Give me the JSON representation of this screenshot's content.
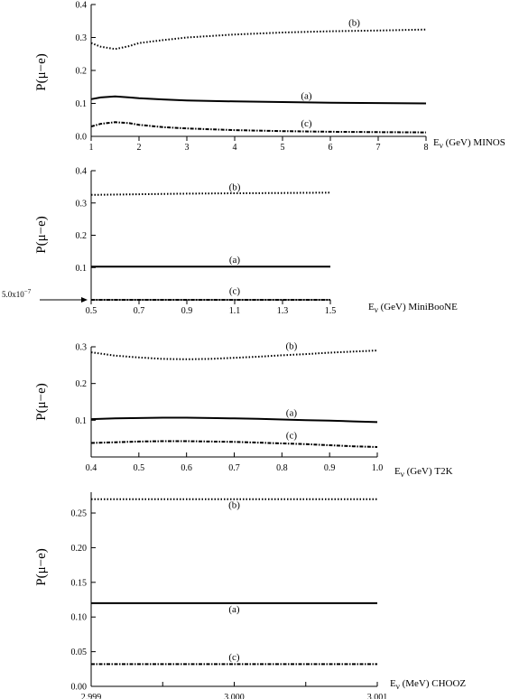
{
  "chart_data": [
    {
      "type": "line",
      "ylabel": "P(μ−e)",
      "xlabel": "Eν (GeV) MINOS",
      "xlim": [
        1,
        8
      ],
      "ylim": [
        0,
        0.4
      ],
      "xticks": [
        1,
        2,
        3,
        4,
        5,
        6,
        7,
        8
      ],
      "xtick_labels": [
        "1",
        "2",
        "3",
        "4",
        "5",
        "6",
        "7",
        "8"
      ],
      "yticks": [
        0,
        0.1,
        0.2,
        0.3,
        0.4
      ],
      "ytick_labels": [
        "0.0",
        "0.1",
        "0.2",
        "0.3",
        "0.4"
      ],
      "series": [
        {
          "name": "(b)",
          "style": "dotted",
          "label_at": [
            6.5,
            0.335
          ],
          "x": [
            1.0,
            1.2,
            1.5,
            1.8,
            2.0,
            2.5,
            3.0,
            4.0,
            5.0,
            6.0,
            7.0,
            8.0
          ],
          "y": [
            0.283,
            0.272,
            0.265,
            0.274,
            0.283,
            0.292,
            0.3,
            0.309,
            0.315,
            0.319,
            0.321,
            0.324
          ]
        },
        {
          "name": "(a)",
          "style": "solid",
          "label_at": [
            5.5,
            0.114
          ],
          "x": [
            1.0,
            1.2,
            1.5,
            1.8,
            2.0,
            2.5,
            3.0,
            4.0,
            5.0,
            6.0,
            7.0,
            8.0
          ],
          "y": [
            0.113,
            0.118,
            0.121,
            0.118,
            0.116,
            0.112,
            0.109,
            0.106,
            0.104,
            0.102,
            0.101,
            0.1
          ]
        },
        {
          "name": "(c)",
          "style": "dashdot",
          "label_at": [
            5.5,
            0.03
          ],
          "x": [
            1.0,
            1.2,
            1.5,
            1.8,
            2.0,
            2.5,
            3.0,
            4.0,
            5.0,
            6.0,
            7.0,
            8.0
          ],
          "y": [
            0.03,
            0.038,
            0.043,
            0.04,
            0.035,
            0.028,
            0.024,
            0.019,
            0.016,
            0.014,
            0.013,
            0.012
          ]
        }
      ]
    },
    {
      "type": "line",
      "ylabel": "P(μ−e)",
      "xlabel": "Eν (GeV) MiniBooNE",
      "xlim": [
        0.5,
        1.5
      ],
      "ylim": [
        0,
        0.4
      ],
      "xticks": [
        0.5,
        0.7,
        0.9,
        1.1,
        1.3,
        1.5
      ],
      "xtick_labels": [
        "0.5",
        "0.7",
        "0.9",
        "1.1",
        "1.3",
        "1.5"
      ],
      "yticks": [
        0.1,
        0.2,
        0.3,
        0.4
      ],
      "ytick_labels": [
        "0.1",
        "0.2",
        "0.3",
        "0.4"
      ],
      "annotation": {
        "text": "5.0x10",
        "superscript": "−7",
        "arrow_to_y": 0.0
      },
      "series": [
        {
          "name": "(b)",
          "style": "dotted",
          "label_at": [
            1.1,
            0.34
          ],
          "x": [
            0.5,
            0.7,
            0.9,
            1.1,
            1.3,
            1.5
          ],
          "y": [
            0.325,
            0.327,
            0.329,
            0.33,
            0.331,
            0.332
          ]
        },
        {
          "name": "(a)",
          "style": "solid",
          "label_at": [
            1.1,
            0.115
          ],
          "x": [
            0.5,
            0.7,
            0.9,
            1.1,
            1.3,
            1.5
          ],
          "y": [
            0.103,
            0.103,
            0.103,
            0.103,
            0.103,
            0.103
          ]
        },
        {
          "name": "(c)",
          "style": "dashdot",
          "label_at": [
            1.1,
            0.018
          ],
          "x": [
            0.5,
            0.7,
            0.9,
            1.1,
            1.3,
            1.5
          ],
          "y": [
            0.0,
            0.0,
            0.0,
            0.0,
            0.0,
            0.0
          ]
        }
      ]
    },
    {
      "type": "line",
      "ylabel": "P(μ−e)",
      "xlabel": "Eν (GeV) T2K",
      "xlim": [
        0.4,
        1.0
      ],
      "ylim": [
        0,
        0.3
      ],
      "xticks": [
        0.4,
        0.5,
        0.6,
        0.7,
        0.8,
        0.9,
        1.0
      ],
      "xtick_labels": [
        "0.4",
        "0.5",
        "0.6",
        "0.7",
        "0.8",
        "0.9",
        "1.0"
      ],
      "yticks": [
        0.1,
        0.2,
        0.3
      ],
      "ytick_labels": [
        "0.1",
        "0.2",
        "0.3"
      ],
      "series": [
        {
          "name": "(b)",
          "style": "dotted",
          "label_at": [
            0.82,
            0.294
          ],
          "x": [
            0.4,
            0.45,
            0.5,
            0.55,
            0.6,
            0.65,
            0.7,
            0.75,
            0.8,
            0.85,
            0.9,
            0.95,
            1.0
          ],
          "y": [
            0.285,
            0.276,
            0.271,
            0.267,
            0.266,
            0.267,
            0.27,
            0.273,
            0.277,
            0.28,
            0.284,
            0.287,
            0.29
          ]
        },
        {
          "name": "(a)",
          "style": "solid",
          "label_at": [
            0.82,
            0.112
          ],
          "x": [
            0.4,
            0.45,
            0.5,
            0.55,
            0.6,
            0.65,
            0.7,
            0.75,
            0.8,
            0.85,
            0.9,
            0.95,
            1.0
          ],
          "y": [
            0.103,
            0.105,
            0.106,
            0.107,
            0.107,
            0.106,
            0.105,
            0.104,
            0.102,
            0.1,
            0.099,
            0.097,
            0.095
          ]
        },
        {
          "name": "(c)",
          "style": "dashdot",
          "label_at": [
            0.82,
            0.05
          ],
          "x": [
            0.4,
            0.45,
            0.5,
            0.55,
            0.6,
            0.65,
            0.7,
            0.75,
            0.8,
            0.85,
            0.9,
            0.95,
            1.0
          ],
          "y": [
            0.038,
            0.04,
            0.042,
            0.043,
            0.043,
            0.042,
            0.041,
            0.039,
            0.037,
            0.035,
            0.032,
            0.029,
            0.027
          ]
        }
      ]
    },
    {
      "type": "line",
      "ylabel": "P(μ−e)",
      "xlabel": "Eν (MeV) CHOOZ",
      "xlim": [
        2.999,
        3.001
      ],
      "ylim": [
        0,
        0.28
      ],
      "xticks": [
        2.999,
        2.9995,
        3.0,
        3.0005,
        3.001
      ],
      "xtick_labels": [
        "2.999",
        "",
        "3.000",
        "",
        "3.001"
      ],
      "yticks": [
        0,
        0.05,
        0.1,
        0.15,
        0.2,
        0.25
      ],
      "ytick_labels": [
        "0.00",
        "0.05",
        "0.10",
        "0.15",
        "0.20",
        "0.25"
      ],
      "series": [
        {
          "name": "(b)",
          "style": "dotted",
          "label_at": [
            3.0,
            0.257
          ],
          "x": [
            2.999,
            3.001
          ],
          "y": [
            0.27,
            0.27
          ]
        },
        {
          "name": "(a)",
          "style": "solid",
          "label_at": [
            3.0,
            0.107
          ],
          "x": [
            2.999,
            3.001
          ],
          "y": [
            0.12,
            0.12
          ]
        },
        {
          "name": "(c)",
          "style": "dashdot",
          "label_at": [
            3.0,
            0.038
          ],
          "x": [
            2.999,
            3.001
          ],
          "y": [
            0.032,
            0.032
          ]
        }
      ]
    }
  ]
}
